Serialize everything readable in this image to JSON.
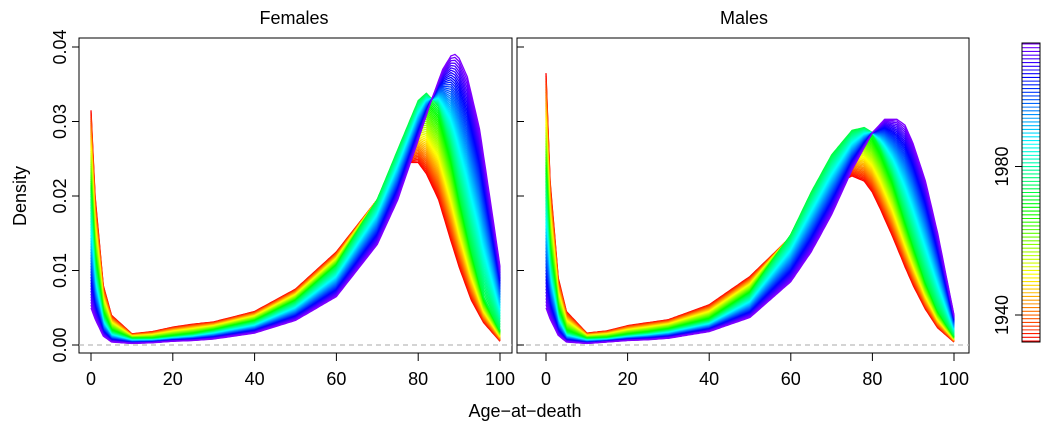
{
  "chart_data": {
    "type": "line",
    "xlabel": "Age−at−death",
    "ylabel": "Density",
    "xlim": [
      0,
      100
    ],
    "ylim": [
      0,
      0.04
    ],
    "x_ticks": [
      "0",
      "20",
      "40",
      "60",
      "80",
      "100"
    ],
    "y_ticks": [
      "0.00",
      "0.01",
      "0.02",
      "0.03",
      "0.04"
    ],
    "reference_line": {
      "y": 0,
      "style": "dashed",
      "color": "#bbbbbb"
    },
    "year_range": [
      1933,
      2013
    ],
    "colorbar": {
      "ticks": [
        "1940",
        "1980"
      ],
      "palette": "rainbow red→violet"
    },
    "panels": [
      {
        "title": "Females",
        "series_by_year": [
          {
            "year": 1933,
            "color": "#ff0000",
            "x": [
              0,
              1,
              3,
              5,
              10,
              15,
              20,
              25,
              30,
              40,
              50,
              60,
              70,
              75,
              78,
              80,
              82,
              85,
              88,
              90,
              93,
              96,
              100
            ],
            "y": [
              0.0315,
              0.02,
              0.008,
              0.004,
              0.0015,
              0.0018,
              0.0024,
              0.0028,
              0.0031,
              0.0045,
              0.0075,
              0.0125,
              0.0195,
              0.023,
              0.0245,
              0.0245,
              0.023,
              0.0195,
              0.014,
              0.0105,
              0.006,
              0.003,
              0.0005
            ]
          },
          {
            "year": 1973,
            "color": "#00ff40",
            "x": [
              0,
              1,
              3,
              5,
              10,
              15,
              20,
              25,
              30,
              40,
              50,
              60,
              70,
              75,
              80,
              82,
              85,
              88,
              90,
              93,
              96,
              100
            ],
            "y": [
              0.02,
              0.011,
              0.004,
              0.0018,
              0.0008,
              0.0008,
              0.0011,
              0.0014,
              0.0019,
              0.0031,
              0.0058,
              0.0105,
              0.0195,
              0.0262,
              0.0328,
              0.0338,
              0.032,
              0.026,
              0.0205,
              0.013,
              0.0065,
              0.002
            ]
          },
          {
            "year": 2013,
            "color": "#2000ff",
            "x": [
              0,
              1,
              3,
              5,
              10,
              15,
              20,
              25,
              30,
              40,
              50,
              60,
              70,
              75,
              80,
              83,
              86,
              88,
              89,
              90,
              92,
              95,
              98,
              100
            ],
            "y": [
              0.005,
              0.0035,
              0.0012,
              0.0004,
              0.0002,
              0.0003,
              0.0005,
              0.0006,
              0.0008,
              0.0016,
              0.0033,
              0.0065,
              0.0135,
              0.0195,
              0.0275,
              0.0325,
              0.037,
              0.0388,
              0.039,
              0.0385,
              0.036,
              0.029,
              0.018,
              0.0105
            ]
          }
        ]
      },
      {
        "title": "Males",
        "series_by_year": [
          {
            "year": 1933,
            "color": "#ff0000",
            "x": [
              0,
              1,
              3,
              5,
              10,
              15,
              20,
              25,
              30,
              40,
              50,
              60,
              65,
              70,
              75,
              78,
              80,
              82,
              85,
              88,
              90,
              93,
              96,
              100
            ],
            "y": [
              0.0365,
              0.022,
              0.009,
              0.0045,
              0.0016,
              0.0019,
              0.0026,
              0.003,
              0.0034,
              0.0054,
              0.0092,
              0.0145,
              0.018,
              0.0213,
              0.0227,
              0.022,
              0.0205,
              0.0182,
              0.0145,
              0.0105,
              0.008,
              0.0048,
              0.0023,
              0.0004
            ]
          },
          {
            "year": 1973,
            "color": "#00ff40",
            "x": [
              0,
              1,
              3,
              5,
              10,
              15,
              20,
              25,
              30,
              40,
              50,
              60,
              65,
              70,
              75,
              78,
              80,
              82,
              85,
              88,
              90,
              93,
              96,
              100
            ],
            "y": [
              0.022,
              0.012,
              0.0045,
              0.0017,
              0.0008,
              0.0009,
              0.0013,
              0.0016,
              0.002,
              0.0033,
              0.0068,
              0.0148,
              0.0205,
              0.0255,
              0.0288,
              0.0292,
              0.0285,
              0.0265,
              0.0225,
              0.0172,
              0.0138,
              0.0088,
              0.0048,
              0.0012
            ]
          },
          {
            "year": 2013,
            "color": "#2000ff",
            "x": [
              0,
              1,
              3,
              5,
              10,
              15,
              20,
              25,
              30,
              40,
              50,
              60,
              65,
              70,
              75,
              80,
              83,
              86,
              88,
              90,
              93,
              96,
              100
            ],
            "y": [
              0.005,
              0.0035,
              0.0013,
              0.0004,
              0.0002,
              0.0004,
              0.0006,
              0.0007,
              0.0009,
              0.0018,
              0.0037,
              0.0085,
              0.0125,
              0.0175,
              0.0235,
              0.0285,
              0.0303,
              0.0303,
              0.0295,
              0.027,
              0.022,
              0.015,
              0.004
            ]
          }
        ]
      }
    ]
  }
}
